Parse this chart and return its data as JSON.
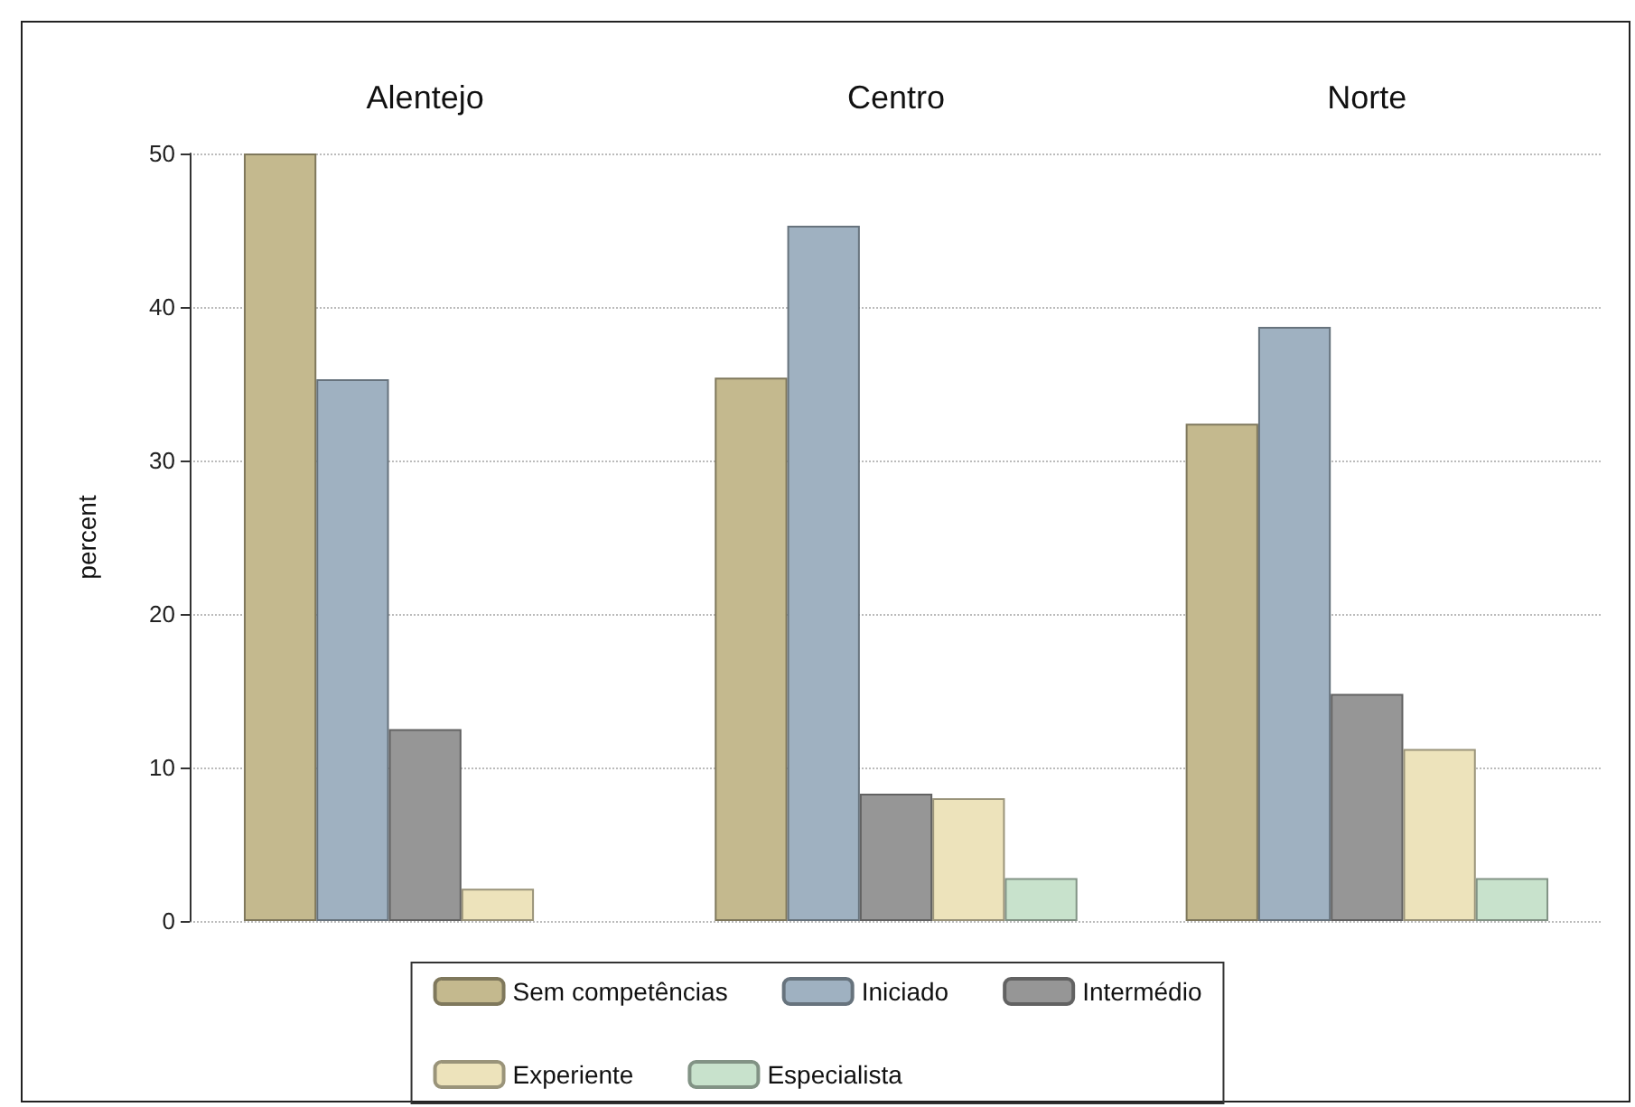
{
  "chart_data": {
    "type": "bar",
    "ylabel": "percent",
    "categories": [
      "Alentejo",
      "Centro",
      "Norte"
    ],
    "ylim": [
      0,
      50
    ],
    "yticks": [
      0,
      10,
      20,
      30,
      40,
      50
    ],
    "grid": "y",
    "legend": "bottom",
    "series": [
      {
        "name": "Sem competências",
        "color": "#c4b98e",
        "values": [
          50,
          35.4,
          32.4
        ]
      },
      {
        "name": "Iniciado",
        "color": "#9fb1c1",
        "values": [
          35.3,
          45.3,
          38.7
        ]
      },
      {
        "name": "Intermédio",
        "color": "#969696",
        "values": [
          12.5,
          8.3,
          14.8
        ]
      },
      {
        "name": "Experiente",
        "color": "#ede3bb",
        "values": [
          2.1,
          8.0,
          11.2
        ]
      },
      {
        "name": "Especialista",
        "color": "#c8e2cc",
        "values": [
          null,
          2.8,
          2.8
        ]
      }
    ]
  }
}
